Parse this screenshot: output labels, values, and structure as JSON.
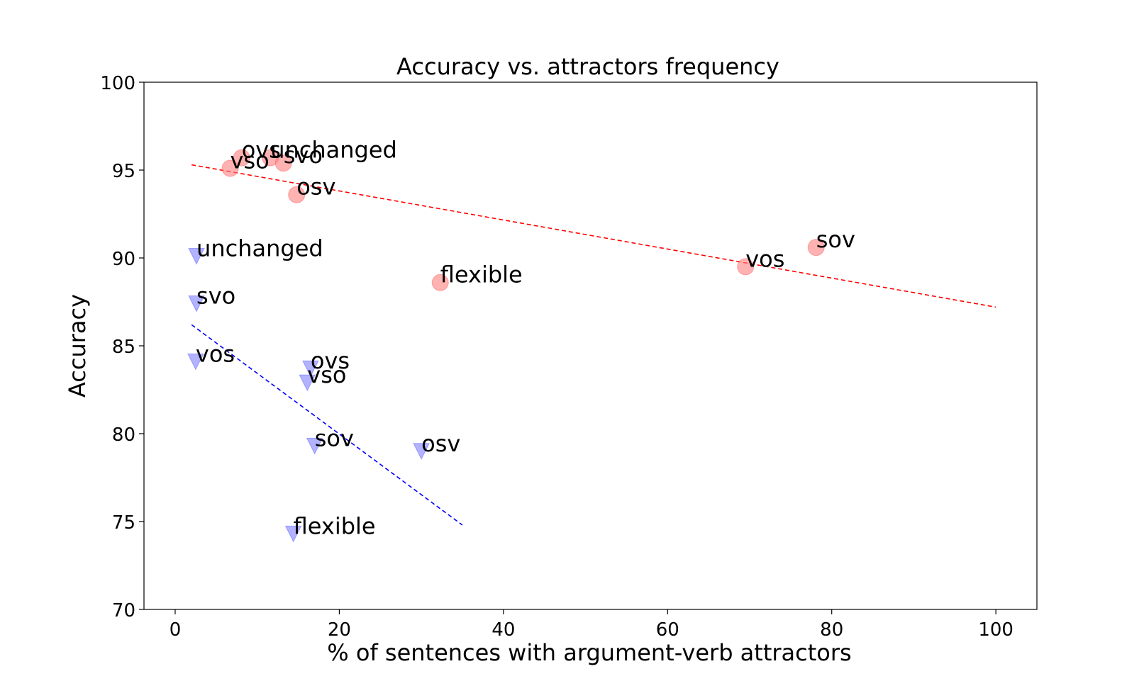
{
  "chart_data": {
    "type": "scatter",
    "title": "Accuracy vs. attractors frequency",
    "xlabel": "% of sentences with argument-verb attractors",
    "ylabel": "Accuracy",
    "xlim": [
      -3.8,
      105
    ],
    "ylim": [
      70,
      100
    ],
    "xticks": [
      0,
      20,
      40,
      60,
      80,
      100
    ],
    "yticks": [
      70,
      75,
      80,
      85,
      90,
      95,
      100
    ],
    "grid": false,
    "legend": "none",
    "series": [
      {
        "marker": "circle",
        "color": "#ff7f7f",
        "points": [
          {
            "x": 6.7,
            "y": 95.1,
            "label": "vso"
          },
          {
            "x": 8.1,
            "y": 95.7,
            "label": "ovs"
          },
          {
            "x": 11.6,
            "y": 95.7,
            "label": "unchanged"
          },
          {
            "x": 13.2,
            "y": 95.4,
            "label": "svo"
          },
          {
            "x": 14.8,
            "y": 93.6,
            "label": "osv"
          },
          {
            "x": 32.3,
            "y": 88.6,
            "label": "flexible"
          },
          {
            "x": 69.5,
            "y": 89.5,
            "label": "vos"
          },
          {
            "x": 78.1,
            "y": 90.6,
            "label": "sov"
          }
        ],
        "trend": {
          "color": "#ff0000",
          "x": [
            2,
            100
          ],
          "y": [
            95.3,
            87.2
          ]
        }
      },
      {
        "marker": "triangle-down",
        "color": "#7f7fff",
        "points": [
          {
            "x": 2.6,
            "y": 90.1,
            "label": "unchanged"
          },
          {
            "x": 2.6,
            "y": 87.4,
            "label": "svo"
          },
          {
            "x": 2.5,
            "y": 84.1,
            "label": "vos"
          },
          {
            "x": 16.5,
            "y": 83.7,
            "label": "ovs"
          },
          {
            "x": 16.1,
            "y": 82.9,
            "label": "vso"
          },
          {
            "x": 17.0,
            "y": 79.3,
            "label": "sov"
          },
          {
            "x": 30.0,
            "y": 79.0,
            "label": "osv"
          },
          {
            "x": 14.4,
            "y": 74.3,
            "label": "flexible"
          }
        ],
        "trend": {
          "color": "#0000ff",
          "x": [
            2,
            35
          ],
          "y": [
            86.2,
            74.8
          ]
        }
      }
    ]
  }
}
